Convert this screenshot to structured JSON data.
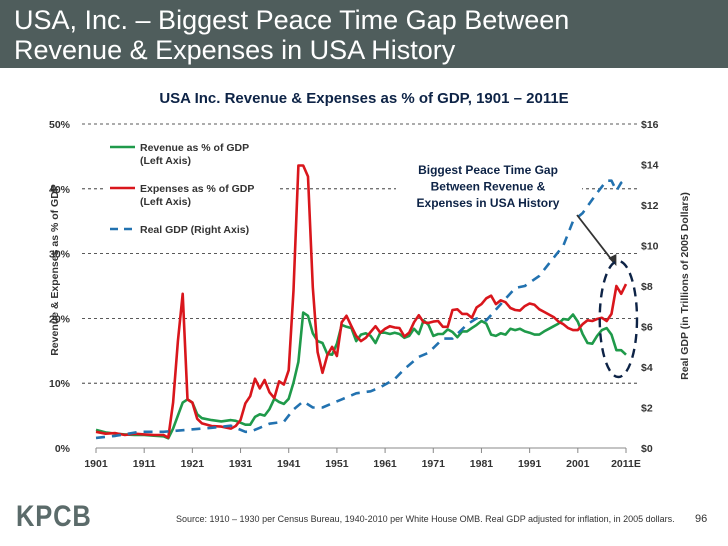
{
  "header": {
    "title_line1": "USA, Inc. – Biggest Peace Time Gap Between",
    "title_line2": "Revenue & Expenses in USA History"
  },
  "footer": {
    "logo": "KPCB",
    "source": "Source: 1910 – 1930 per Census Bureau, 1940-2010 per White House OMB. Real GDP adjusted for inflation, in 2005 dollars.",
    "page_number": "96"
  },
  "colors": {
    "header_bg": "#4f5d5c",
    "revenue": "#1f9a4a",
    "expenses": "#d9161c",
    "gdp": "#2272b0",
    "title_text": "#0d2346",
    "annotation_ellipse": "#0d2346"
  },
  "chart_data": {
    "type": "line",
    "title": "USA Inc. Revenue & Expenses as % of GDP, 1901 – 2011E",
    "xlabel": "",
    "ylabel": "Revenue & Expenses as % of GDP",
    "y2label": "Real GDP (in Trillions of 2005 Dollars)",
    "ylim": [
      0,
      50
    ],
    "y2lim": [
      0,
      16
    ],
    "xlim": [
      1901,
      2011
    ],
    "grid": true,
    "legend_position": "top-left",
    "x_ticks": [
      "1901",
      "1911",
      "1921",
      "1931",
      "1941",
      "1951",
      "1961",
      "1971",
      "1981",
      "1991",
      "2001",
      "2011E"
    ],
    "y_ticks": [
      "0%",
      "10%",
      "20%",
      "30%",
      "40%",
      "50%"
    ],
    "y2_ticks": [
      "$0",
      "$2",
      "$4",
      "$6",
      "$8",
      "$10",
      "$12",
      "$14",
      "$16"
    ],
    "annotation": {
      "text_lines": [
        "Biggest Peace Time Gap",
        "Between Revenue &",
        "Expenses in USA History"
      ],
      "arrow_to_year": 2009,
      "highlight_years": [
        2007,
        2011
      ]
    },
    "series": [
      {
        "name": "Revenue as % of GDP",
        "name_line2": "(Left Axis)",
        "axis": "left",
        "style": "solid",
        "x": [
          1901,
          1903,
          1905,
          1907,
          1909,
          1911,
          1913,
          1915,
          1916,
          1917,
          1918,
          1919,
          1920,
          1921,
          1922,
          1923,
          1925,
          1927,
          1929,
          1930,
          1931,
          1932,
          1933,
          1934,
          1935,
          1936,
          1937,
          1938,
          1939,
          1940,
          1941,
          1942,
          1943,
          1944,
          1945,
          1946,
          1947,
          1948,
          1949,
          1950,
          1951,
          1952,
          1953,
          1954,
          1955,
          1956,
          1957,
          1958,
          1959,
          1960,
          1961,
          1962,
          1963,
          1964,
          1965,
          1966,
          1967,
          1968,
          1969,
          1970,
          1971,
          1972,
          1973,
          1974,
          1975,
          1976,
          1977,
          1978,
          1979,
          1980,
          1981,
          1982,
          1983,
          1984,
          1985,
          1986,
          1987,
          1988,
          1989,
          1990,
          1991,
          1992,
          1993,
          1994,
          1995,
          1996,
          1997,
          1998,
          1999,
          2000,
          2001,
          2002,
          2003,
          2004,
          2005,
          2006,
          2007,
          2008,
          2009,
          2010,
          2011
        ],
        "values": [
          2.8,
          2.4,
          2.2,
          2.1,
          2.0,
          2.0,
          1.9,
          1.8,
          1.5,
          3.0,
          5.0,
          7.0,
          7.5,
          7.0,
          5.2,
          4.6,
          4.3,
          4.1,
          4.3,
          4.2,
          3.9,
          3.6,
          3.6,
          4.8,
          5.2,
          5.0,
          6.0,
          7.6,
          7.1,
          6.8,
          7.6,
          10.1,
          13.3,
          20.9,
          20.4,
          17.7,
          16.5,
          16.2,
          14.5,
          14.4,
          16.1,
          19.0,
          18.7,
          18.5,
          16.5,
          17.5,
          17.7,
          17.3,
          16.2,
          17.8,
          17.8,
          17.6,
          17.8,
          17.6,
          17.0,
          17.3,
          18.4,
          17.6,
          19.7,
          19.0,
          17.3,
          17.6,
          17.6,
          18.3,
          17.9,
          17.1,
          18.0,
          18.0,
          18.5,
          19.0,
          19.6,
          19.2,
          17.5,
          17.3,
          17.7,
          17.5,
          18.4,
          18.2,
          18.4,
          18.0,
          17.8,
          17.5,
          17.5,
          18.0,
          18.4,
          18.8,
          19.2,
          19.9,
          19.8,
          20.6,
          19.5,
          17.6,
          16.2,
          16.1,
          17.3,
          18.2,
          18.5,
          17.5,
          15.1,
          15.1,
          14.4
        ]
      },
      {
        "name": "Expenses as % of GDP",
        "name_line2": "(Left Axis)",
        "axis": "left",
        "style": "solid",
        "x": [
          1901,
          1903,
          1905,
          1907,
          1909,
          1911,
          1913,
          1915,
          1916,
          1917,
          1918,
          1919,
          1920,
          1921,
          1922,
          1923,
          1925,
          1927,
          1929,
          1930,
          1931,
          1932,
          1933,
          1934,
          1935,
          1936,
          1937,
          1938,
          1939,
          1940,
          1941,
          1942,
          1943,
          1944,
          1945,
          1946,
          1947,
          1948,
          1949,
          1950,
          1951,
          1952,
          1953,
          1954,
          1955,
          1956,
          1957,
          1958,
          1959,
          1960,
          1961,
          1962,
          1963,
          1964,
          1965,
          1966,
          1967,
          1968,
          1969,
          1970,
          1971,
          1972,
          1973,
          1974,
          1975,
          1976,
          1977,
          1978,
          1979,
          1980,
          1981,
          1982,
          1983,
          1984,
          1985,
          1986,
          1987,
          1988,
          1989,
          1990,
          1991,
          1992,
          1993,
          1994,
          1995,
          1996,
          1997,
          1998,
          1999,
          2000,
          2001,
          2002,
          2003,
          2004,
          2005,
          2006,
          2007,
          2008,
          2009,
          2010,
          2011
        ],
        "values": [
          2.5,
          2.2,
          2.3,
          2.0,
          2.2,
          2.1,
          2.0,
          2.0,
          1.6,
          7.0,
          16.5,
          23.8,
          7.5,
          7.0,
          4.5,
          3.8,
          3.4,
          3.3,
          3.0,
          3.4,
          4.3,
          6.9,
          8.0,
          10.7,
          9.2,
          10.5,
          8.6,
          7.7,
          10.3,
          9.8,
          12.0,
          24.3,
          43.6,
          43.6,
          41.9,
          24.8,
          14.8,
          11.6,
          14.3,
          15.6,
          14.2,
          19.4,
          20.4,
          18.8,
          17.3,
          16.5,
          17.0,
          17.9,
          18.8,
          17.8,
          18.4,
          18.8,
          18.6,
          18.5,
          17.2,
          17.8,
          19.4,
          20.5,
          19.4,
          19.3,
          19.5,
          19.6,
          18.7,
          18.7,
          21.3,
          21.4,
          20.7,
          20.7,
          20.1,
          21.7,
          22.2,
          23.1,
          23.5,
          22.2,
          22.8,
          22.5,
          21.6,
          21.3,
          21.2,
          21.9,
          22.3,
          22.1,
          21.4,
          21.0,
          20.6,
          20.2,
          19.5,
          19.1,
          18.5,
          18.2,
          18.2,
          19.1,
          19.7,
          19.6,
          19.9,
          20.1,
          19.6,
          20.7,
          25.0,
          23.8,
          25.3
        ]
      },
      {
        "name": "Real GDP (Right Axis)",
        "axis": "right",
        "style": "dashed",
        "x": [
          1901,
          1905,
          1910,
          1915,
          1920,
          1925,
          1929,
          1930,
          1932,
          1933,
          1935,
          1937,
          1940,
          1942,
          1944,
          1946,
          1948,
          1950,
          1952,
          1955,
          1958,
          1960,
          1963,
          1965,
          1968,
          1970,
          1973,
          1975,
          1978,
          1980,
          1982,
          1985,
          1988,
          1990,
          1993,
          1995,
          1998,
          2000,
          2002,
          2005,
          2007,
          2008,
          2009,
          2010,
          2011
        ],
        "values": [
          0.5,
          0.6,
          0.8,
          0.8,
          0.9,
          1.0,
          1.1,
          1.0,
          0.8,
          0.8,
          1.0,
          1.2,
          1.3,
          1.9,
          2.3,
          2.0,
          2.0,
          2.2,
          2.4,
          2.7,
          2.8,
          3.0,
          3.4,
          3.9,
          4.5,
          4.7,
          5.4,
          5.4,
          6.1,
          6.4,
          6.3,
          7.1,
          7.9,
          8.0,
          8.5,
          9.1,
          10.0,
          11.2,
          11.6,
          12.6,
          13.2,
          13.2,
          12.7,
          13.1,
          13.3
        ]
      }
    ]
  }
}
